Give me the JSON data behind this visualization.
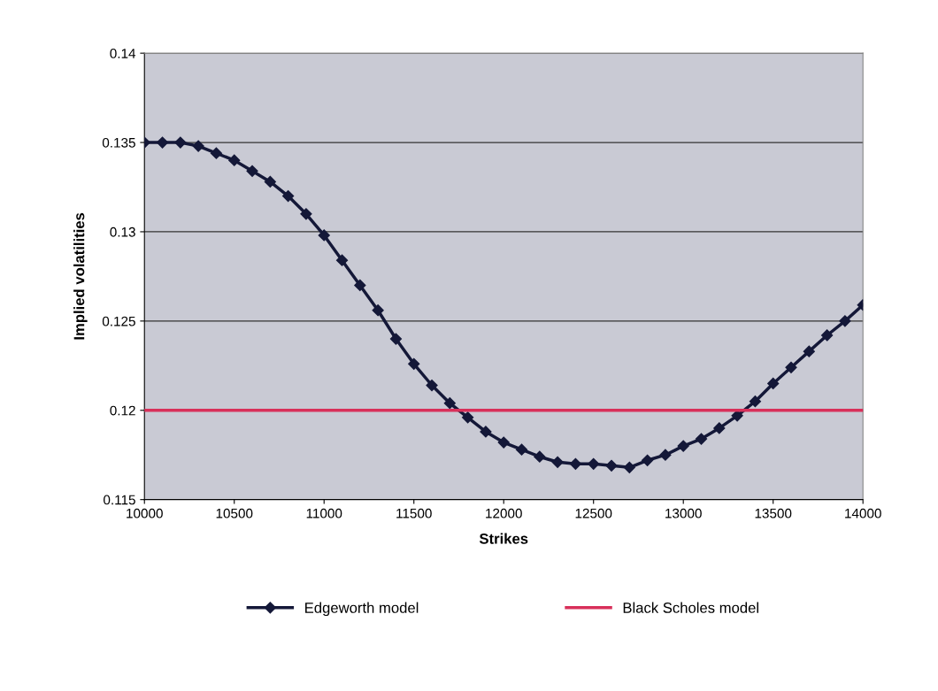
{
  "chart_data": {
    "type": "line",
    "xlabel": "Strikes",
    "ylabel": "Implied volatilities",
    "xlim": [
      10000,
      14000
    ],
    "xticks": [
      10000,
      10500,
      11000,
      11500,
      12000,
      12500,
      13000,
      13500,
      14000
    ],
    "ylim": [
      0.115,
      0.14
    ],
    "yticks": [
      0.115,
      0.12,
      0.125,
      0.13,
      0.135,
      0.14
    ],
    "grid": "y",
    "legend": "bottom",
    "series": [
      {
        "name": "Edgeworth model",
        "color": "#141838",
        "marker": "diamond",
        "line_style": "solid",
        "x": [
          10000,
          10100,
          10200,
          10300,
          10400,
          10500,
          10600,
          10700,
          10800,
          10900,
          11000,
          11100,
          11200,
          11300,
          11400,
          11500,
          11600,
          11700,
          11800,
          11900,
          12000,
          12100,
          12200,
          12300,
          12400,
          12500,
          12600,
          12700,
          12800,
          12900,
          13000,
          13100,
          13200,
          13300,
          13400,
          13500,
          13600,
          13700,
          13800,
          13900,
          14000
        ],
        "values": [
          0.135,
          0.135,
          0.135,
          0.1348,
          0.1344,
          0.134,
          0.1334,
          0.1328,
          0.132,
          0.131,
          0.1298,
          0.1284,
          0.127,
          0.1256,
          0.124,
          0.1226,
          0.1214,
          0.1204,
          0.1196,
          0.1188,
          0.1182,
          0.1178,
          0.1174,
          0.1171,
          0.117,
          0.117,
          0.1169,
          0.1168,
          0.1172,
          0.1175,
          0.118,
          0.1184,
          0.119,
          0.1197,
          0.1205,
          0.1215,
          0.1224,
          0.1233,
          0.1242,
          0.125,
          0.1259
        ]
      },
      {
        "name": "Black Scholes model",
        "color": "#d8305a",
        "marker": "none",
        "line_style": "solid",
        "x": [
          10000,
          14000
        ],
        "values": [
          0.12,
          0.12
        ]
      }
    ]
  }
}
